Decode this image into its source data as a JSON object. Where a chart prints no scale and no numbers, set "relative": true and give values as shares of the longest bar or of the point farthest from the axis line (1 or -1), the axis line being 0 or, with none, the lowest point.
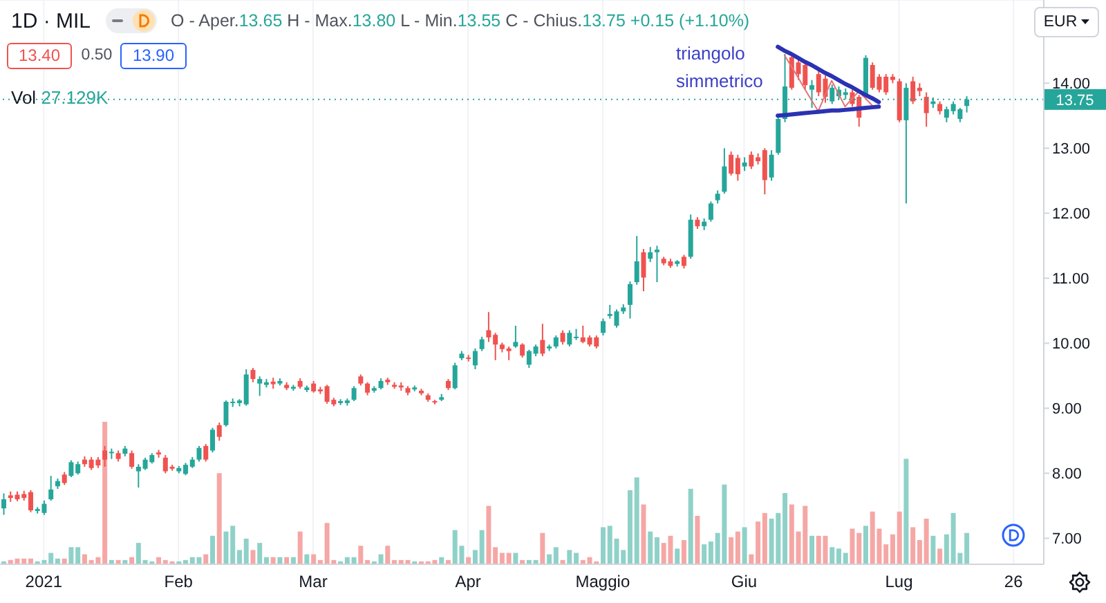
{
  "chart_data": [
    {
      "type": "candlestick",
      "title": "1D · MIL",
      "subtitle": "O - Aper.13.65 H - Max.13.80 L - Min.13.55 C - Chius.13.75 +0.15 (+1.10%)",
      "categories": [
        null,
        null,
        null,
        null,
        null,
        null,
        "2021",
        null,
        null,
        null,
        null,
        null,
        null,
        null,
        null,
        null,
        null,
        null,
        null,
        null,
        null,
        null,
        null,
        null,
        null,
        null,
        "Feb",
        null,
        null,
        null,
        null,
        null,
        null,
        null,
        null,
        null,
        null,
        null,
        null,
        null,
        null,
        null,
        null,
        null,
        null,
        null,
        "Mar",
        null,
        null,
        null,
        null,
        null,
        null,
        null,
        null,
        null,
        null,
        null,
        null,
        null,
        null,
        null,
        null,
        null,
        null,
        null,
        null,
        null,
        null,
        "Apr",
        null,
        null,
        null,
        null,
        null,
        null,
        null,
        null,
        null,
        null,
        null,
        null,
        null,
        null,
        null,
        null,
        null,
        null,
        null,
        "Maggio",
        null,
        null,
        null,
        null,
        null,
        null,
        null,
        null,
        null,
        null,
        null,
        null,
        null,
        null,
        null,
        null,
        null,
        null,
        null,
        null,
        "Giu",
        null,
        null,
        null,
        null,
        null,
        null,
        null,
        null,
        null,
        null,
        null,
        null,
        null,
        null,
        null,
        null,
        null,
        null,
        null,
        null,
        null,
        null,
        "Lug",
        null,
        null,
        null,
        null,
        null,
        null,
        null,
        null,
        null,
        null,
        null,
        null,
        null,
        null,
        null,
        null,
        "26",
        null,
        null,
        null,
        null
      ],
      "ohlc": [
        [
          7.46,
          7.69,
          7.36,
          7.6
        ],
        [
          7.66,
          7.72,
          7.56,
          7.62
        ],
        [
          7.67,
          7.72,
          7.57,
          7.6
        ],
        [
          7.68,
          7.73,
          7.58,
          7.62
        ],
        [
          7.71,
          7.74,
          7.4,
          7.43
        ],
        [
          7.42,
          7.48,
          7.38,
          7.45
        ],
        [
          7.39,
          7.58,
          7.36,
          7.53
        ],
        [
          7.6,
          7.96,
          7.58,
          7.75
        ],
        [
          7.8,
          7.92,
          7.76,
          7.88
        ],
        [
          7.98,
          8.02,
          7.82,
          7.85
        ],
        [
          7.96,
          8.2,
          7.94,
          8.17
        ],
        [
          8,
          8.18,
          7.98,
          8.14
        ],
        [
          8.21,
          8.26,
          8.1,
          8.14
        ],
        [
          8.21,
          8.25,
          8.05,
          8.08
        ],
        [
          8.21,
          8.25,
          8.08,
          8.12
        ],
        [
          8.35,
          8.42,
          8.1,
          8.21
        ],
        [
          8.31,
          8.38,
          8.22,
          8.33
        ],
        [
          8.31,
          8.35,
          8.18,
          8.22
        ],
        [
          8.3,
          8.42,
          8.26,
          8.38
        ],
        [
          8.31,
          8.35,
          8.07,
          8.1
        ],
        [
          8.03,
          8.14,
          7.78,
          8.1
        ],
        [
          8.07,
          8.24,
          8.05,
          8.21
        ],
        [
          8.17,
          8.31,
          8.15,
          8.28
        ],
        [
          8.32,
          8.36,
          8.24,
          8.29
        ],
        [
          8.24,
          8.28,
          8,
          8.03
        ],
        [
          8.1,
          8.13,
          8.04,
          8.07
        ],
        [
          8.03,
          8.11,
          8,
          8.08
        ],
        [
          7.99,
          8.16,
          7.97,
          8.13
        ],
        [
          8.1,
          8.25,
          8.08,
          8.21
        ],
        [
          8.21,
          8.42,
          8.18,
          8.39
        ],
        [
          8.42,
          8.45,
          8.18,
          8.21
        ],
        [
          8.35,
          8.7,
          8.32,
          8.67
        ],
        [
          8.74,
          8.78,
          8.5,
          8.56
        ],
        [
          8.74,
          9.12,
          8.72,
          9.1
        ],
        [
          9.08,
          9.15,
          9.02,
          9.1
        ],
        [
          9.08,
          9.14,
          9.03,
          9.12
        ],
        [
          9.06,
          9.6,
          9.04,
          9.52
        ],
        [
          9.59,
          9.62,
          9.4,
          9.45
        ],
        [
          9.38,
          9.49,
          9.19,
          9.45
        ],
        [
          9.36,
          9.45,
          9.32,
          9.4
        ],
        [
          9.41,
          9.47,
          9.3,
          9.37
        ],
        [
          9.38,
          9.46,
          9.35,
          9.42
        ],
        [
          9.36,
          9.4,
          9.28,
          9.31
        ],
        [
          9.3,
          9.36,
          9.27,
          9.33
        ],
        [
          9.42,
          9.46,
          9.3,
          9.33
        ],
        [
          9.28,
          9.35,
          9.25,
          9.32
        ],
        [
          9.38,
          9.42,
          9.24,
          9.26
        ],
        [
          9.29,
          9.33,
          9.22,
          9.26
        ],
        [
          9.34,
          9.36,
          9.07,
          9.1
        ],
        [
          9.13,
          9.16,
          9.03,
          9.06
        ],
        [
          9.08,
          9.14,
          9.05,
          9.11
        ],
        [
          9.08,
          9.15,
          9.04,
          9.12
        ],
        [
          9.13,
          9.34,
          9.11,
          9.31
        ],
        [
          9.49,
          9.52,
          9.35,
          9.38
        ],
        [
          9.38,
          9.4,
          9.2,
          9.24
        ],
        [
          9.27,
          9.34,
          9.24,
          9.31
        ],
        [
          9.31,
          9.46,
          9.29,
          9.42
        ],
        [
          9.44,
          9.47,
          9.36,
          9.4
        ],
        [
          9.36,
          9.4,
          9.3,
          9.33
        ],
        [
          9.35,
          9.4,
          9.27,
          9.32
        ],
        [
          9.31,
          9.34,
          9.2,
          9.24
        ],
        [
          9.29,
          9.35,
          9.26,
          9.32
        ],
        [
          9.27,
          9.3,
          9.2,
          9.23
        ],
        [
          9.2,
          9.23,
          9.1,
          9.13
        ],
        [
          9.11,
          9.13,
          9.06,
          9.09
        ],
        [
          9.13,
          9.22,
          9.11,
          9.17
        ],
        [
          9.42,
          9.45,
          9.28,
          9.31
        ],
        [
          9.31,
          9.7,
          9.29,
          9.66
        ],
        [
          9.77,
          9.88,
          9.74,
          9.84
        ],
        [
          9.78,
          9.82,
          9.72,
          9.77
        ],
        [
          9.66,
          9.92,
          9.6,
          9.88
        ],
        [
          9.91,
          10.1,
          9.88,
          10.06
        ],
        [
          10.2,
          10.48,
          10.02,
          10.09
        ],
        [
          10.13,
          10.16,
          9.74,
          9.98
        ],
        [
          9.98,
          10.01,
          9.86,
          9.91
        ],
        [
          9.92,
          9.95,
          9.74,
          9.88
        ],
        [
          9.95,
          10.27,
          9.93,
          10.02
        ],
        [
          9.98,
          10,
          9.78,
          9.81
        ],
        [
          9.67,
          9.9,
          9.62,
          9.88
        ],
        [
          9.84,
          9.98,
          9.8,
          9.95
        ],
        [
          10.05,
          10.3,
          9.8,
          9.84
        ],
        [
          9.92,
          9.98,
          9.88,
          9.95
        ],
        [
          9.95,
          10.12,
          9.92,
          10.09
        ],
        [
          10.16,
          10.2,
          9.98,
          10.02
        ],
        [
          9.98,
          10.2,
          9.95,
          10.16
        ],
        [
          10.09,
          10.22,
          10.05,
          10.1
        ],
        [
          10.09,
          10.27,
          10,
          10.02
        ],
        [
          10.09,
          10.12,
          9.95,
          9.98
        ],
        [
          10.09,
          10.12,
          9.92,
          9.95
        ],
        [
          10.16,
          10.38,
          10.12,
          10.34
        ],
        [
          10.42,
          10.59,
          10.38,
          10.45
        ],
        [
          10.27,
          10.52,
          10.24,
          10.49
        ],
        [
          10.49,
          10.6,
          10.45,
          10.55
        ],
        [
          10.59,
          10.95,
          10.38,
          10.91
        ],
        [
          10.94,
          11.65,
          10.9,
          11.26
        ],
        [
          11.4,
          11.45,
          10.8,
          11.01
        ],
        [
          11.3,
          11.48,
          11.25,
          11.4
        ],
        [
          11.4,
          11.5,
          10.94,
          11.44
        ],
        [
          11.3,
          11.33,
          11.2,
          11.23
        ],
        [
          11.26,
          11.3,
          11.16,
          11.19
        ],
        [
          11.22,
          11.28,
          11.18,
          11.26
        ],
        [
          11.33,
          11.36,
          11.15,
          11.19
        ],
        [
          11.33,
          11.98,
          11.3,
          11.9
        ],
        [
          11.9,
          11.94,
          11.76,
          11.8
        ],
        [
          11.8,
          11.92,
          11.74,
          11.87
        ],
        [
          11.9,
          12.18,
          11.87,
          12.15
        ],
        [
          12.2,
          12.35,
          12.15,
          12.3
        ],
        [
          12.33,
          13,
          12.3,
          12.72
        ],
        [
          12.9,
          12.95,
          12.58,
          12.61
        ],
        [
          12.85,
          12.9,
          12.5,
          12.6
        ],
        [
          12.72,
          12.86,
          12.65,
          12.78
        ],
        [
          12.9,
          12.95,
          12.68,
          12.72
        ],
        [
          12.86,
          12.92,
          12.75,
          12.8
        ],
        [
          12.97,
          13,
          12.29,
          12.51
        ],
        [
          12.55,
          12.97,
          12.5,
          12.9
        ],
        [
          12.93,
          13.5,
          12.9,
          13.45
        ],
        [
          13.45,
          14.45,
          13.4,
          13.95
        ],
        [
          14.4,
          14.45,
          13.9,
          13.93
        ],
        [
          14.32,
          14.36,
          14.05,
          14.14
        ],
        [
          14.28,
          14.3,
          13.9,
          13.97
        ],
        [
          13.9,
          14.05,
          13.62,
          13.97
        ],
        [
          14.14,
          14.2,
          13.8,
          13.86
        ],
        [
          14.07,
          14.12,
          13.7,
          13.79
        ],
        [
          13.72,
          13.98,
          13.68,
          13.93
        ],
        [
          13.8,
          13.95,
          13.75,
          13.9
        ],
        [
          13.82,
          13.92,
          13.75,
          13.86
        ],
        [
          13.86,
          13.9,
          13.64,
          13.68
        ],
        [
          13.79,
          13.82,
          13.33,
          13.47
        ],
        [
          13.82,
          14.43,
          13.8,
          14.39
        ],
        [
          14.28,
          14.32,
          13.9,
          13.93
        ],
        [
          14.1,
          14.14,
          13.86,
          13.9
        ],
        [
          14.1,
          14.14,
          13.82,
          13.86
        ],
        [
          14.1,
          14.14,
          14,
          14.05
        ],
        [
          14.03,
          14.07,
          13.4,
          13.43
        ],
        [
          13.43,
          14,
          12.15,
          13.93
        ],
        [
          14.03,
          14.1,
          13.68,
          13.72
        ],
        [
          13.93,
          14,
          13.8,
          13.88
        ],
        [
          13.79,
          13.86,
          13.33,
          13.54
        ],
        [
          13.68,
          13.78,
          13.62,
          13.72
        ],
        [
          13.68,
          13.72,
          13.52,
          13.57
        ],
        [
          13.47,
          13.64,
          13.4,
          13.6
        ],
        [
          13.57,
          13.72,
          13.52,
          13.68
        ],
        [
          13.45,
          13.62,
          13.4,
          13.6
        ],
        [
          13.65,
          13.8,
          13.55,
          13.75
        ],
        null,
        null,
        null,
        null,
        null,
        null,
        null,
        null,
        null,
        null,
        null
      ],
      "colors": [
        "#26a69a",
        "#ef5350",
        "#ef5350",
        "#ef5350",
        "#ef5350",
        "#26a69a",
        "#26a69a",
        "#26a69a",
        "#26a69a",
        "#ef5350",
        "#26a69a",
        "#26a69a",
        "#ef5350",
        "#ef5350",
        "#ef5350",
        "#ef5350",
        "#26a69a",
        "#ef5350",
        "#26a69a",
        "#ef5350",
        "#26a69a",
        "#26a69a",
        "#26a69a",
        "#ef5350",
        "#ef5350",
        "#ef5350",
        "#26a69a",
        "#26a69a",
        "#26a69a",
        "#26a69a",
        "#ef5350",
        "#26a69a",
        "#ef5350",
        "#26a69a",
        "#26a69a",
        "#26a69a",
        "#26a69a",
        "#ef5350",
        "#26a69a",
        "#26a69a",
        "#ef5350",
        "#26a69a",
        "#ef5350",
        "#26a69a",
        "#ef5350",
        "#26a69a",
        "#ef5350",
        "#ef5350",
        "#ef5350",
        "#ef5350",
        "#26a69a",
        "#26a69a",
        "#26a69a",
        "#ef5350",
        "#ef5350",
        "#26a69a",
        "#26a69a",
        "#ef5350",
        "#ef5350",
        "#ef5350",
        "#ef5350",
        "#26a69a",
        "#ef5350",
        "#ef5350",
        "#ef5350",
        "#26a69a",
        "#ef5350",
        "#26a69a",
        "#26a69a",
        "#ef5350",
        "#26a69a",
        "#26a69a",
        "#ef5350",
        "#ef5350",
        "#ef5350",
        "#ef5350",
        "#26a69a",
        "#ef5350",
        "#26a69a",
        "#26a69a",
        "#ef5350",
        "#26a69a",
        "#26a69a",
        "#ef5350",
        "#26a69a",
        "#26a69a",
        "#ef5350",
        "#ef5350",
        "#ef5350",
        "#26a69a",
        "#26a69a",
        "#26a69a",
        "#26a69a",
        "#26a69a",
        "#26a69a",
        "#ef5350",
        "#26a69a",
        "#26a69a",
        "#ef5350",
        "#ef5350",
        "#26a69a",
        "#ef5350",
        "#26a69a",
        "#ef5350",
        "#26a69a",
        "#26a69a",
        "#26a69a",
        "#26a69a",
        "#ef5350",
        "#ef5350",
        "#26a69a",
        "#ef5350",
        "#ef5350",
        "#ef5350",
        "#26a69a",
        "#26a69a",
        "#26a69a",
        "#ef5350",
        "#ef5350",
        "#ef5350",
        "#26a69a",
        "#ef5350",
        "#ef5350",
        "#26a69a",
        "#26a69a",
        "#26a69a",
        "#ef5350",
        "#ef5350",
        "#26a69a",
        "#ef5350",
        "#ef5350",
        "#ef5350",
        "#ef5350",
        "#ef5350",
        "#26a69a",
        "#ef5350",
        "#ef5350",
        "#ef5350",
        "#26a69a",
        "#ef5350",
        "#26a69a",
        "#26a69a",
        "#26a69a",
        "#26a69a",
        null,
        null,
        null,
        null,
        null,
        null,
        null,
        null,
        null,
        null,
        null
      ],
      "series": [
        {
          "type": "line",
          "color": "#e57373",
          "values": [
            null,
            null,
            null,
            null,
            null,
            null,
            null,
            null,
            null,
            null,
            null,
            null,
            null,
            null,
            null,
            null,
            null,
            null,
            null,
            null,
            null,
            null,
            null,
            null,
            null,
            null,
            null,
            null,
            null,
            null,
            null,
            null,
            null,
            null,
            null,
            null,
            null,
            null,
            null,
            null,
            null,
            null,
            null,
            null,
            null,
            null,
            null,
            null,
            null,
            null,
            null,
            null,
            null,
            null,
            null,
            null,
            null,
            null,
            null,
            null,
            null,
            null,
            null,
            null,
            null,
            null,
            null,
            null,
            null,
            null,
            null,
            null,
            null,
            null,
            null,
            null,
            null,
            null,
            null,
            null,
            null,
            null,
            null,
            null,
            null,
            null,
            null,
            null,
            null,
            null,
            null,
            null,
            null,
            null,
            null,
            null,
            null,
            null,
            null,
            null,
            null,
            null,
            null,
            null,
            null,
            null,
            null,
            null,
            null,
            null,
            null,
            null,
            null,
            null,
            null,
            null,
            14.43,
            14.26,
            14.09,
            13.91,
            13.74,
            13.57,
            13.81,
            14.04,
            13.84,
            13.64,
            13.76,
            13.87,
            13.77,
            13.66,
            null,
            null,
            null,
            null,
            null,
            null,
            null,
            null,
            null,
            null,
            null,
            null,
            null,
            null,
            null,
            null,
            null,
            null,
            null,
            null,
            null,
            null,
            null,
            null,
            null
          ]
        },
        {
          "type": "line",
          "color": "#2b32b2",
          "values": [
            null,
            null,
            null,
            null,
            null,
            null,
            null,
            null,
            null,
            null,
            null,
            null,
            null,
            null,
            null,
            null,
            null,
            null,
            null,
            null,
            null,
            null,
            null,
            null,
            null,
            null,
            null,
            null,
            null,
            null,
            null,
            null,
            null,
            null,
            null,
            null,
            null,
            null,
            null,
            null,
            null,
            null,
            null,
            null,
            null,
            null,
            null,
            null,
            null,
            null,
            null,
            null,
            null,
            null,
            null,
            null,
            null,
            null,
            null,
            null,
            null,
            null,
            null,
            null,
            null,
            null,
            null,
            null,
            null,
            null,
            null,
            null,
            null,
            null,
            null,
            null,
            null,
            null,
            null,
            null,
            null,
            null,
            null,
            null,
            null,
            null,
            null,
            null,
            null,
            null,
            null,
            null,
            null,
            null,
            null,
            null,
            null,
            null,
            null,
            null,
            null,
            null,
            null,
            null,
            null,
            null,
            null,
            null,
            null,
            null,
            null,
            null,
            null,
            null,
            null,
            14.56,
            14.5,
            14.45,
            14.39,
            14.33,
            14.28,
            14.22,
            14.16,
            14.11,
            14.05,
            13.99,
            13.94,
            13.88,
            13.82,
            13.77,
            13.71,
            null,
            null,
            null,
            null,
            null,
            null,
            null,
            null,
            null,
            null,
            null,
            null,
            null,
            null,
            null,
            null,
            null,
            null,
            null,
            null,
            null,
            null,
            null,
            null
          ]
        },
        {
          "type": "line",
          "color": "#2b32b2",
          "values": [
            null,
            null,
            null,
            null,
            null,
            null,
            null,
            null,
            null,
            null,
            null,
            null,
            null,
            null,
            null,
            null,
            null,
            null,
            null,
            null,
            null,
            null,
            null,
            null,
            null,
            null,
            null,
            null,
            null,
            null,
            null,
            null,
            null,
            null,
            null,
            null,
            null,
            null,
            null,
            null,
            null,
            null,
            null,
            null,
            null,
            null,
            null,
            null,
            null,
            null,
            null,
            null,
            null,
            null,
            null,
            null,
            null,
            null,
            null,
            null,
            null,
            null,
            null,
            null,
            null,
            null,
            null,
            null,
            null,
            null,
            null,
            null,
            null,
            null,
            null,
            null,
            null,
            null,
            null,
            null,
            null,
            null,
            null,
            null,
            null,
            null,
            null,
            null,
            null,
            null,
            null,
            null,
            null,
            null,
            null,
            null,
            null,
            null,
            null,
            null,
            null,
            null,
            null,
            null,
            null,
            null,
            null,
            null,
            null,
            null,
            null,
            null,
            null,
            null,
            null,
            13.5,
            13.51,
            13.52,
            13.53,
            13.54,
            13.55,
            13.56,
            13.57,
            13.58,
            13.58,
            13.59,
            13.6,
            13.61,
            13.62,
            13.63,
            13.64,
            null,
            null,
            null,
            null,
            null,
            null,
            null,
            null,
            null,
            null,
            null,
            null,
            null,
            null,
            null,
            null,
            null,
            null,
            null,
            null,
            null,
            null,
            null,
            null
          ]
        }
      ],
      "ylim": [
        6.6,
        15.28
      ],
      "yticks": [
        {
          "value": 7,
          "label": "7.00"
        },
        {
          "value": 8,
          "label": "8.00"
        },
        {
          "value": 9,
          "label": "9.00"
        },
        {
          "value": 10,
          "label": "10.00"
        },
        {
          "value": 11,
          "label": "11.00"
        },
        {
          "value": 12,
          "label": "12.00"
        },
        {
          "value": 13,
          "label": "13.00"
        },
        {
          "value": 14,
          "label": "14.00"
        }
      ],
      "grid": true,
      "ref_lines": [
        {
          "axis": "y",
          "value": 13.75,
          "label": "13.75",
          "color": "#26a69a",
          "line_style": "dotted"
        }
      ],
      "annotations": [
        "13.40",
        "0.50",
        "13.90",
        "EUR",
        "triangolo simmetrico",
        "Vol 27.129K"
      ]
    },
    {
      "type": "bar",
      "relative": true,
      "categories": [
        null,
        null,
        null,
        null,
        null,
        null,
        null,
        null,
        null,
        null,
        null,
        null,
        null,
        null,
        null,
        null,
        null,
        null,
        null,
        null,
        null,
        null,
        null,
        null,
        null,
        null,
        null,
        null,
        null,
        null,
        null,
        null,
        null,
        null,
        null,
        null,
        null,
        null,
        null,
        null,
        null,
        null,
        null,
        null,
        null,
        null,
        null,
        null,
        null,
        null,
        null,
        null,
        null,
        null,
        null,
        null,
        null,
        null,
        null,
        null,
        null,
        null,
        null,
        null,
        null,
        null,
        null,
        null,
        null,
        null,
        null,
        null,
        null,
        null,
        null,
        null,
        null,
        null,
        null,
        null,
        null,
        null,
        null,
        null,
        null,
        null,
        null,
        null,
        null,
        null,
        null,
        null,
        null,
        null,
        null,
        null,
        null,
        null,
        null,
        null,
        null,
        null,
        null,
        null,
        null,
        null,
        null,
        null,
        null,
        null,
        null,
        null,
        null,
        null,
        null,
        null,
        null,
        null,
        null,
        null,
        null,
        null,
        null,
        null,
        null,
        null,
        null,
        null,
        null,
        null,
        null,
        null,
        null,
        null,
        null,
        null,
        null,
        null,
        null,
        null,
        null,
        null,
        null,
        null,
        null,
        null,
        null,
        null,
        null,
        null,
        null,
        null,
        null,
        null,
        null
      ],
      "values": [
        0.02,
        0.03,
        0.04,
        0.04,
        0.04,
        0.02,
        0.03,
        0.08,
        0.04,
        0.04,
        0.12,
        0.12,
        0.07,
        0.03,
        0.05,
        1,
        0.03,
        0.03,
        0.03,
        0.05,
        0.15,
        0.03,
        0.02,
        0.05,
        0.03,
        0.02,
        0.02,
        0.03,
        0.05,
        0.05,
        0.07,
        0.2,
        0.64,
        0.23,
        0.27,
        0.1,
        0.18,
        0.1,
        0.15,
        0.05,
        0.05,
        0.05,
        0.05,
        0.05,
        0.23,
        0.07,
        0.07,
        0.03,
        0.29,
        0.03,
        0.02,
        0.05,
        0.05,
        0.13,
        0.03,
        0.02,
        0.07,
        0.13,
        0.03,
        0.03,
        0.03,
        0.02,
        0.02,
        0.02,
        0.03,
        0.05,
        0.03,
        0.24,
        0.13,
        0.05,
        0.1,
        0.24,
        0.41,
        0.12,
        0.08,
        0.08,
        0.08,
        0.03,
        0.03,
        0.03,
        0.22,
        0.07,
        0.12,
        0.03,
        0.1,
        0.08,
        0.03,
        0.05,
        0.02,
        0.26,
        0.27,
        0.18,
        0.1,
        0.52,
        0.61,
        0.42,
        0.23,
        0.19,
        0.15,
        0.2,
        0.11,
        0.17,
        0.53,
        0.34,
        0.14,
        0.16,
        0.22,
        0.56,
        0.19,
        0.23,
        0.26,
        0.07,
        0.3,
        0.36,
        0.32,
        0.36,
        0.5,
        0.42,
        0.23,
        0.41,
        0.2,
        0.2,
        0.2,
        0.12,
        0.11,
        0.08,
        0.25,
        0.22,
        0.27,
        0.37,
        0.25,
        0.14,
        0.21,
        0.37,
        0.74,
        0.26,
        0.17,
        0.32,
        0.2,
        0.11,
        0.21,
        0.36,
        0.08,
        0.22,
        null,
        null,
        null,
        null,
        null,
        null,
        null,
        null,
        null,
        null,
        null
      ],
      "colors": [
        "#8fd1c8",
        "#f5a7a5",
        "#f5a7a5",
        "#f5a7a5",
        "#f5a7a5",
        "#8fd1c8",
        "#8fd1c8",
        "#8fd1c8",
        "#8fd1c8",
        "#f5a7a5",
        "#8fd1c8",
        "#8fd1c8",
        "#f5a7a5",
        "#f5a7a5",
        "#f5a7a5",
        "#f5a7a5",
        "#8fd1c8",
        "#f5a7a5",
        "#8fd1c8",
        "#f5a7a5",
        "#8fd1c8",
        "#8fd1c8",
        "#8fd1c8",
        "#f5a7a5",
        "#f5a7a5",
        "#f5a7a5",
        "#8fd1c8",
        "#8fd1c8",
        "#8fd1c8",
        "#8fd1c8",
        "#f5a7a5",
        "#8fd1c8",
        "#f5a7a5",
        "#8fd1c8",
        "#8fd1c8",
        "#8fd1c8",
        "#8fd1c8",
        "#f5a7a5",
        "#8fd1c8",
        "#8fd1c8",
        "#f5a7a5",
        "#8fd1c8",
        "#f5a7a5",
        "#8fd1c8",
        "#f5a7a5",
        "#8fd1c8",
        "#f5a7a5",
        "#f5a7a5",
        "#f5a7a5",
        "#f5a7a5",
        "#8fd1c8",
        "#8fd1c8",
        "#8fd1c8",
        "#f5a7a5",
        "#f5a7a5",
        "#8fd1c8",
        "#8fd1c8",
        "#f5a7a5",
        "#f5a7a5",
        "#f5a7a5",
        "#f5a7a5",
        "#8fd1c8",
        "#f5a7a5",
        "#f5a7a5",
        "#f5a7a5",
        "#8fd1c8",
        "#f5a7a5",
        "#8fd1c8",
        "#8fd1c8",
        "#f5a7a5",
        "#8fd1c8",
        "#8fd1c8",
        "#f5a7a5",
        "#f5a7a5",
        "#f5a7a5",
        "#f5a7a5",
        "#8fd1c8",
        "#f5a7a5",
        "#8fd1c8",
        "#8fd1c8",
        "#f5a7a5",
        "#8fd1c8",
        "#8fd1c8",
        "#f5a7a5",
        "#8fd1c8",
        "#8fd1c8",
        "#f5a7a5",
        "#f5a7a5",
        "#f5a7a5",
        "#8fd1c8",
        "#8fd1c8",
        "#8fd1c8",
        "#8fd1c8",
        "#8fd1c8",
        "#8fd1c8",
        "#f5a7a5",
        "#8fd1c8",
        "#8fd1c8",
        "#f5a7a5",
        "#f5a7a5",
        "#8fd1c8",
        "#f5a7a5",
        "#8fd1c8",
        "#f5a7a5",
        "#8fd1c8",
        "#8fd1c8",
        "#8fd1c8",
        "#8fd1c8",
        "#f5a7a5",
        "#f5a7a5",
        "#8fd1c8",
        "#f5a7a5",
        "#f5a7a5",
        "#f5a7a5",
        "#8fd1c8",
        "#8fd1c8",
        "#8fd1c8",
        "#f5a7a5",
        "#f5a7a5",
        "#f5a7a5",
        "#8fd1c8",
        "#f5a7a5",
        "#f5a7a5",
        "#8fd1c8",
        "#8fd1c8",
        "#8fd1c8",
        "#f5a7a5",
        "#f5a7a5",
        "#8fd1c8",
        "#f5a7a5",
        "#f5a7a5",
        "#f5a7a5",
        "#f5a7a5",
        "#f5a7a5",
        "#8fd1c8",
        "#f5a7a5",
        "#f5a7a5",
        "#f5a7a5",
        "#8fd1c8",
        "#f5a7a5",
        "#8fd1c8",
        "#8fd1c8",
        "#8fd1c8",
        "#8fd1c8",
        null,
        null,
        null,
        null,
        null,
        null,
        null,
        null,
        null,
        null,
        null
      ]
    }
  ]
}
